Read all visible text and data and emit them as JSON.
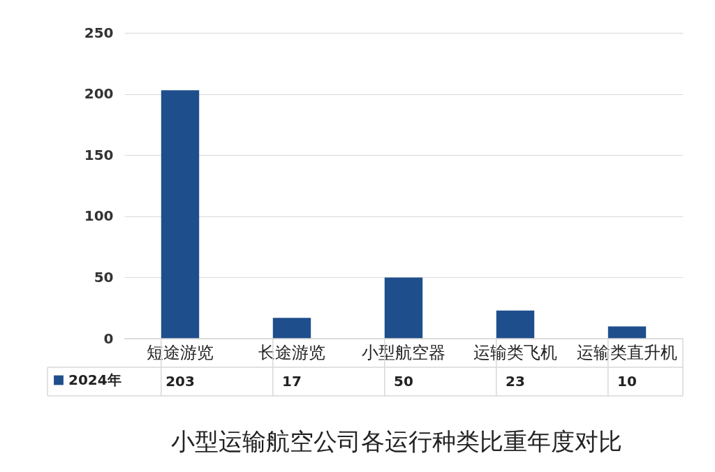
{
  "chart_data": {
    "type": "bar",
    "title": "小型运输航空公司各运行种类比重年度对比",
    "categories": [
      "短途游览",
      "长途游览",
      "小型航空器",
      "运输类飞机",
      "运输类直升机"
    ],
    "series": [
      {
        "name": "2024年",
        "color": "#1f4e8c",
        "values": [
          203,
          17,
          50,
          23,
          10
        ]
      }
    ],
    "ylim": [
      0,
      250
    ],
    "yticks": [
      0,
      50,
      100,
      150,
      200,
      250
    ],
    "grid": "y",
    "legend": "bottom left",
    "data_labels": true
  }
}
